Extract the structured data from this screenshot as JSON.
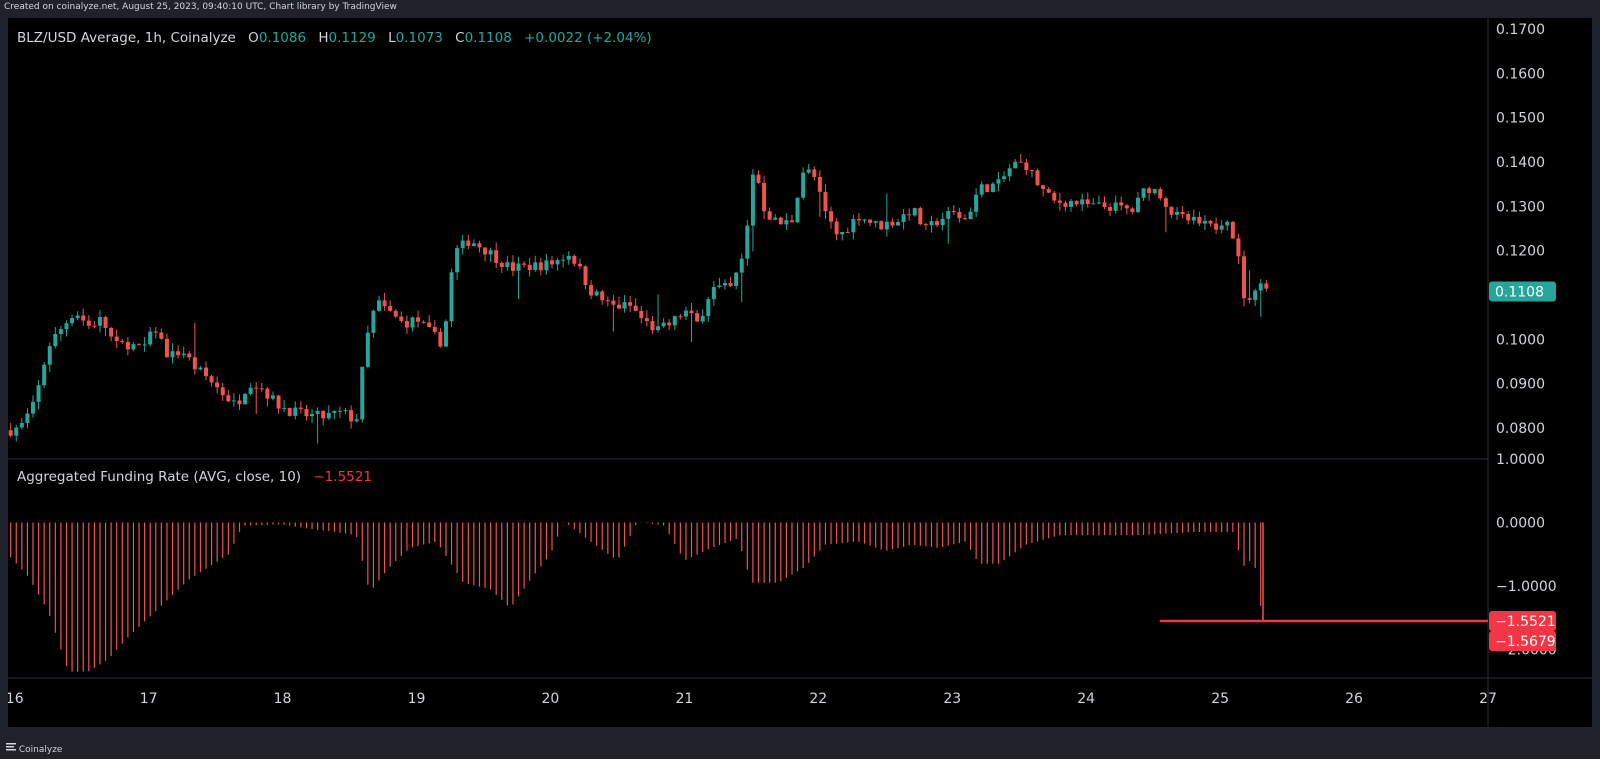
{
  "header": {
    "created_text": "Created on coinalyze.net, August 25, 2023, 09:40:10 UTC, Chart library by TradingView"
  },
  "footer": {
    "brand": "Coinalyze"
  },
  "colors": {
    "background": "#000000",
    "up": "#26a69a",
    "down": "#ef5350",
    "axis_text": "#d1d4dc",
    "last_price_badge": "#26a69a",
    "funding_badge": "#f23645",
    "pane_divider": "#2a2e39"
  },
  "price_pane": {
    "symbol": "BLZ/USD Average, 1h, Coinalyze",
    "o_label": "O",
    "o_value": "0.1086",
    "h_label": "H",
    "h_value": "0.1129",
    "l_label": "L",
    "l_value": "0.1073",
    "c_label": "C",
    "c_value": "0.1108",
    "change": "+0.0022 (+2.04%)",
    "last_price_label": "0.1108"
  },
  "funding_pane": {
    "title": "Aggregated Funding Rate (AVG, close, 10)",
    "value": "−1.5521",
    "badge_1": "−1.5521",
    "badge_2": "−1.5679"
  },
  "chart_data": [
    {
      "type": "candlestick",
      "title": "BLZ/USD Average, 1h, Coinalyze",
      "ylim": [
        0.073,
        0.1725
      ],
      "y_ticks": [
        "0.0800",
        "0.0900",
        "0.1000",
        "0.1100",
        "0.1200",
        "0.1300",
        "0.1400",
        "0.1500",
        "0.1600",
        "0.1700"
      ],
      "x_ticks": [
        "16",
        "17",
        "18",
        "19",
        "20",
        "21",
        "22",
        "23",
        "24",
        "25",
        "26",
        "27"
      ],
      "x_range_days": [
        15.95,
        27.0
      ],
      "series_path_days_close": [
        [
          15.97,
          0.0795
        ],
        [
          16.05,
          0.0805
        ],
        [
          16.15,
          0.0855
        ],
        [
          16.25,
          0.0985
        ],
        [
          16.35,
          0.1025
        ],
        [
          16.45,
          0.1065
        ],
        [
          16.55,
          0.103
        ],
        [
          16.65,
          0.1045
        ],
        [
          16.75,
          0.0985
        ],
        [
          16.85,
          0.099
        ],
        [
          16.95,
          0.0975
        ],
        [
          17.05,
          0.1025
        ],
        [
          17.15,
          0.096
        ],
        [
          17.25,
          0.0975
        ],
        [
          17.35,
          0.0935
        ],
        [
          17.45,
          0.091
        ],
        [
          17.55,
          0.088
        ],
        [
          17.65,
          0.085
        ],
        [
          17.75,
          0.0905
        ],
        [
          17.85,
          0.089
        ],
        [
          17.95,
          0.0855
        ],
        [
          18.05,
          0.084
        ],
        [
          18.15,
          0.083
        ],
        [
          18.3,
          0.0825
        ],
        [
          18.45,
          0.0835
        ],
        [
          18.55,
          0.0815
        ],
        [
          18.62,
          0.099
        ],
        [
          18.7,
          0.1085
        ],
        [
          18.8,
          0.106
        ],
        [
          18.9,
          0.1035
        ],
        [
          19.0,
          0.1045
        ],
        [
          19.1,
          0.1015
        ],
        [
          19.2,
          0.099
        ],
        [
          19.28,
          0.1195
        ],
        [
          19.4,
          0.1225
        ],
        [
          19.55,
          0.1195
        ],
        [
          19.7,
          0.116
        ],
        [
          19.85,
          0.1165
        ],
        [
          20.0,
          0.117
        ],
        [
          20.15,
          0.1195
        ],
        [
          20.3,
          0.111
        ],
        [
          20.45,
          0.1075
        ],
        [
          20.6,
          0.1075
        ],
        [
          20.7,
          0.104
        ],
        [
          20.8,
          0.102
        ],
        [
          20.9,
          0.1035
        ],
        [
          21.0,
          0.1065
        ],
        [
          21.1,
          0.1035
        ],
        [
          21.2,
          0.1115
        ],
        [
          21.35,
          0.1115
        ],
        [
          21.45,
          0.1195
        ],
        [
          21.52,
          0.14
        ],
        [
          21.6,
          0.129
        ],
        [
          21.7,
          0.126
        ],
        [
          21.8,
          0.1265
        ],
        [
          21.88,
          0.138
        ],
        [
          21.96,
          0.1375
        ],
        [
          22.05,
          0.1285
        ],
        [
          22.15,
          0.123
        ],
        [
          22.3,
          0.128
        ],
        [
          22.45,
          0.1255
        ],
        [
          22.6,
          0.127
        ],
        [
          22.7,
          0.1295
        ],
        [
          22.8,
          0.1245
        ],
        [
          22.9,
          0.127
        ],
        [
          23.0,
          0.1285
        ],
        [
          23.1,
          0.127
        ],
        [
          23.2,
          0.134
        ],
        [
          23.35,
          0.135
        ],
        [
          23.45,
          0.1395
        ],
        [
          23.55,
          0.1395
        ],
        [
          23.65,
          0.1345
        ],
        [
          23.75,
          0.131
        ],
        [
          23.9,
          0.131
        ],
        [
          24.05,
          0.13
        ],
        [
          24.2,
          0.13
        ],
        [
          24.35,
          0.129
        ],
        [
          24.45,
          0.1345
        ],
        [
          24.55,
          0.133
        ],
        [
          24.65,
          0.128
        ],
        [
          24.8,
          0.1265
        ],
        [
          24.95,
          0.125
        ],
        [
          25.05,
          0.128
        ],
        [
          25.12,
          0.121
        ],
        [
          25.2,
          0.106
        ],
        [
          25.28,
          0.114
        ],
        [
          25.35,
          0.1108
        ]
      ]
    },
    {
      "type": "bar",
      "title": "Aggregated Funding Rate (AVG, close, 10)",
      "ylim": [
        -2.45,
        1.0
      ],
      "y_ticks": [
        "1.0000",
        "0.0000",
        "−1.0000",
        "−2.0000"
      ],
      "series_path_days_value": [
        [
          15.97,
          -0.55
        ],
        [
          16.1,
          -0.85
        ],
        [
          16.25,
          -1.4
        ],
        [
          16.4,
          -2.35
        ],
        [
          16.55,
          -2.35
        ],
        [
          16.7,
          -2.15
        ],
        [
          16.85,
          -1.8
        ],
        [
          17.0,
          -1.5
        ],
        [
          17.15,
          -1.2
        ],
        [
          17.3,
          -0.9
        ],
        [
          17.45,
          -0.7
        ],
        [
          17.6,
          -0.5
        ],
        [
          17.7,
          -0.05
        ],
        [
          18.0,
          -0.03
        ],
        [
          18.2,
          -0.1
        ],
        [
          18.4,
          -0.15
        ],
        [
          18.55,
          -0.2
        ],
        [
          18.65,
          -1.1
        ],
        [
          18.8,
          -0.7
        ],
        [
          18.95,
          -0.4
        ],
        [
          19.15,
          -0.3
        ],
        [
          19.35,
          -0.95
        ],
        [
          19.55,
          -1.05
        ],
        [
          19.7,
          -1.35
        ],
        [
          19.85,
          -0.9
        ],
        [
          20.0,
          -0.5
        ],
        [
          20.1,
          0.02
        ],
        [
          20.3,
          -0.3
        ],
        [
          20.5,
          -0.6
        ],
        [
          20.65,
          0.01
        ],
        [
          20.85,
          -0.05
        ],
        [
          21.0,
          -0.6
        ],
        [
          21.2,
          -0.4
        ],
        [
          21.4,
          -0.25
        ],
        [
          21.5,
          -0.95
        ],
        [
          21.7,
          -0.95
        ],
        [
          21.9,
          -0.7
        ],
        [
          22.05,
          -0.35
        ],
        [
          22.3,
          -0.3
        ],
        [
          22.5,
          -0.45
        ],
        [
          22.7,
          -0.35
        ],
        [
          22.9,
          -0.4
        ],
        [
          23.1,
          -0.3
        ],
        [
          23.2,
          -0.65
        ],
        [
          23.35,
          -0.65
        ],
        [
          23.55,
          -0.35
        ],
        [
          23.8,
          -0.2
        ],
        [
          24.0,
          -0.2
        ],
        [
          24.4,
          -0.2
        ],
        [
          24.8,
          -0.15
        ],
        [
          25.1,
          -0.15
        ],
        [
          25.17,
          -0.7
        ],
        [
          25.25,
          -0.55
        ],
        [
          25.32,
          -1.5521
        ]
      ],
      "markers": [
        -1.5521,
        -1.5679
      ]
    }
  ]
}
